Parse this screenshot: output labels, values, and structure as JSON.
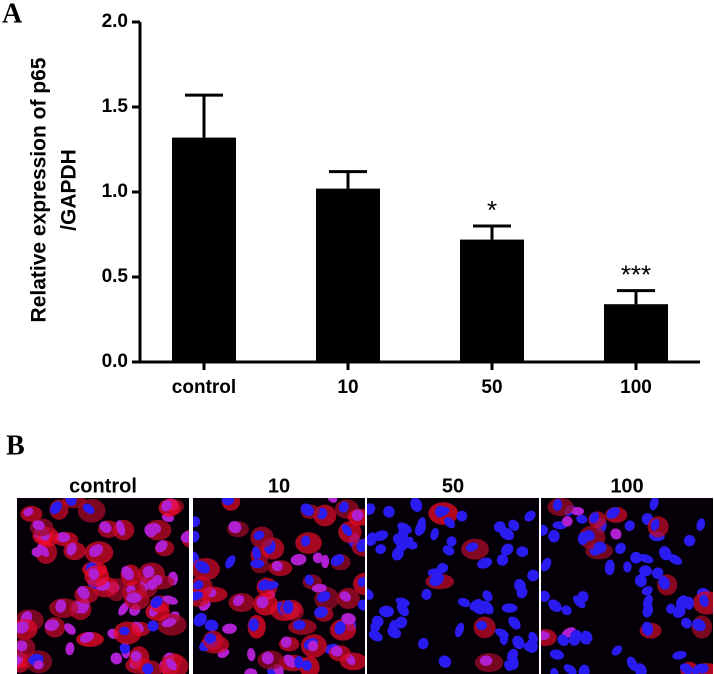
{
  "chart_data": {
    "type": "bar",
    "panel_label": "A",
    "y_label_lines": [
      "Relative expression of p65",
      "/GAPDH"
    ],
    "categories": [
      "control",
      "10",
      "50",
      "100"
    ],
    "values": [
      1.32,
      1.02,
      0.72,
      0.34
    ],
    "errors": [
      0.25,
      0.1,
      0.08,
      0.08
    ],
    "annotations": [
      null,
      null,
      "*",
      "***"
    ],
    "color": "#000000",
    "ylim": [
      0,
      2.0
    ],
    "yticks": [
      {
        "value": 0,
        "label": "0.0"
      },
      {
        "value": 0.5,
        "label": "0.5"
      },
      {
        "value": 1.0,
        "label": "1.0"
      },
      {
        "value": 1.5,
        "label": "1.5"
      },
      {
        "value": 2.0,
        "label": "2.0"
      }
    ]
  },
  "panel_b": {
    "panel_label": "B",
    "image_labels": [
      "control",
      "10",
      "50",
      "100"
    ]
  }
}
